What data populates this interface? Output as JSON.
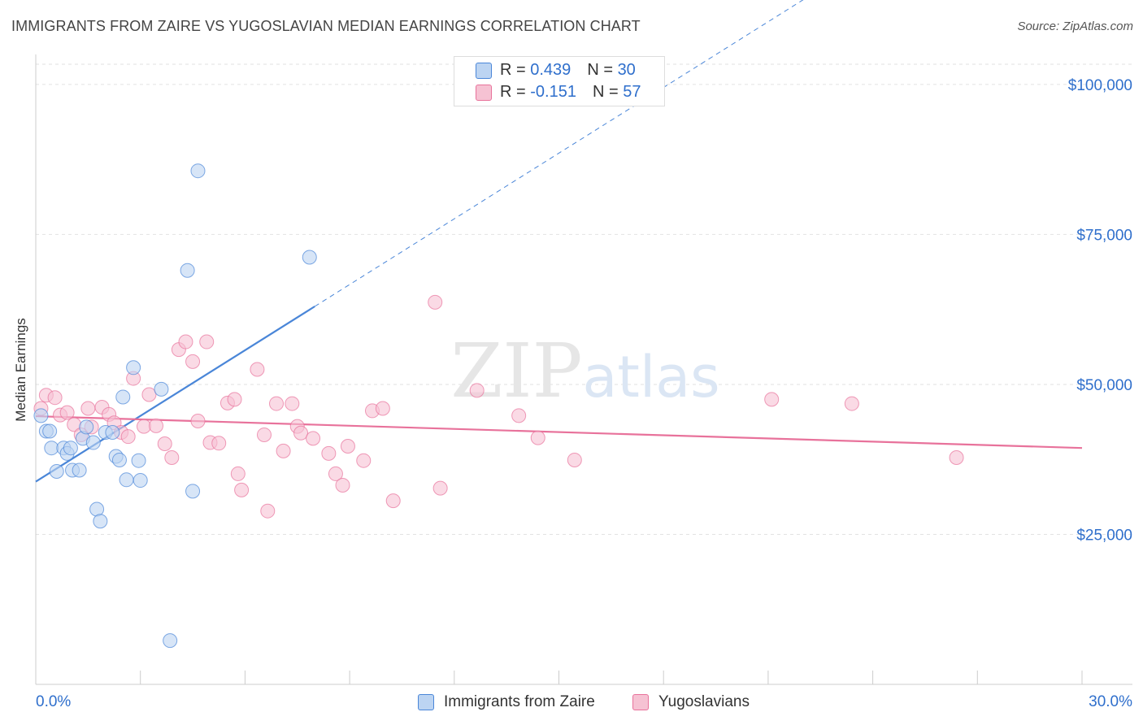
{
  "title": "IMMIGRANTS FROM ZAIRE VS YUGOSLAVIAN MEDIAN EARNINGS CORRELATION CHART",
  "source": "Source: ZipAtlas.com",
  "colors": {
    "blue": "#4a86d8",
    "blue_fill": "#bcd4f2",
    "pink": "#e8729b",
    "pink_fill": "#f6c2d3",
    "axis_label": "#2f6fcc"
  },
  "legend": {
    "r_label": "R = ",
    "n_label": "N = ",
    "rows": [
      {
        "r": "0.439",
        "n": "30"
      },
      {
        "r": "-0.151",
        "n": "57"
      }
    ]
  },
  "chart_data": {
    "type": "scatter",
    "title": "IMMIGRANTS FROM ZAIRE VS YUGOSLAVIAN MEDIAN EARNINGS CORRELATION CHART",
    "xlabel": "",
    "ylabel": "Median Earnings",
    "xlim": [
      0,
      30
    ],
    "ylim": [
      0,
      105000
    ],
    "x_tick_labels": [
      "0.0%",
      "30.0%"
    ],
    "y_ticks": [
      25000,
      50000,
      75000,
      100000
    ],
    "y_tick_labels": [
      "$25,000",
      "$50,000",
      "$75,000",
      "$100,000"
    ],
    "watermark": "ZIPatlas",
    "series": [
      {
        "name": "Immigrants from Zaire",
        "color": "#4a86d8",
        "trend": {
          "x0": 0,
          "y0": 33800,
          "x1": 8.0,
          "y1": 63000,
          "dash_to_x": 23.8
        },
        "points": [
          [
            0.15,
            44800
          ],
          [
            0.3,
            42200
          ],
          [
            0.4,
            42200
          ],
          [
            0.45,
            39400
          ],
          [
            0.6,
            35500
          ],
          [
            0.8,
            39400
          ],
          [
            0.9,
            38500
          ],
          [
            1.0,
            39400
          ],
          [
            1.05,
            35700
          ],
          [
            1.25,
            35700
          ],
          [
            1.35,
            41000
          ],
          [
            1.45,
            42900
          ],
          [
            1.65,
            40300
          ],
          [
            1.75,
            29200
          ],
          [
            1.85,
            27200
          ],
          [
            2.0,
            42000
          ],
          [
            2.2,
            42000
          ],
          [
            2.3,
            38000
          ],
          [
            2.4,
            37400
          ],
          [
            2.5,
            47900
          ],
          [
            2.6,
            34100
          ],
          [
            2.8,
            52800
          ],
          [
            2.95,
            37300
          ],
          [
            3.0,
            34000
          ],
          [
            3.6,
            49200
          ],
          [
            3.85,
            7300
          ],
          [
            4.35,
            69000
          ],
          [
            4.5,
            32200
          ],
          [
            4.65,
            85600
          ],
          [
            7.85,
            71200
          ]
        ]
      },
      {
        "name": "Yugoslavians",
        "color": "#e8729b",
        "trend": {
          "x0": 0,
          "y0": 44700,
          "x1": 30,
          "y1": 39400
        },
        "points": [
          [
            0.15,
            46000
          ],
          [
            0.3,
            48200
          ],
          [
            0.55,
            47800
          ],
          [
            0.7,
            44900
          ],
          [
            0.9,
            45300
          ],
          [
            1.1,
            43300
          ],
          [
            1.3,
            41600
          ],
          [
            1.5,
            46000
          ],
          [
            1.6,
            42900
          ],
          [
            1.9,
            46200
          ],
          [
            2.1,
            45000
          ],
          [
            2.25,
            43600
          ],
          [
            2.45,
            42000
          ],
          [
            2.65,
            41300
          ],
          [
            2.8,
            51000
          ],
          [
            3.1,
            43000
          ],
          [
            3.25,
            48300
          ],
          [
            3.45,
            43100
          ],
          [
            3.7,
            40100
          ],
          [
            3.9,
            37800
          ],
          [
            4.1,
            55800
          ],
          [
            4.3,
            57100
          ],
          [
            4.5,
            53800
          ],
          [
            4.65,
            43900
          ],
          [
            4.9,
            57100
          ],
          [
            5.0,
            40300
          ],
          [
            5.25,
            40200
          ],
          [
            5.5,
            46900
          ],
          [
            5.7,
            47500
          ],
          [
            5.8,
            35100
          ],
          [
            5.9,
            32400
          ],
          [
            6.35,
            52500
          ],
          [
            6.55,
            41600
          ],
          [
            6.65,
            28900
          ],
          [
            6.9,
            46800
          ],
          [
            7.1,
            38900
          ],
          [
            7.35,
            46800
          ],
          [
            7.5,
            43000
          ],
          [
            7.6,
            41900
          ],
          [
            7.95,
            41000
          ],
          [
            8.4,
            38500
          ],
          [
            8.6,
            35100
          ],
          [
            8.8,
            33200
          ],
          [
            8.95,
            39700
          ],
          [
            9.4,
            37300
          ],
          [
            9.65,
            45600
          ],
          [
            9.95,
            46000
          ],
          [
            10.25,
            30600
          ],
          [
            11.45,
            63700
          ],
          [
            11.6,
            32700
          ],
          [
            12.65,
            49000
          ],
          [
            13.85,
            44800
          ],
          [
            14.4,
            41100
          ],
          [
            15.45,
            37400
          ],
          [
            21.1,
            47500
          ],
          [
            23.4,
            46800
          ],
          [
            26.4,
            37800
          ]
        ]
      }
    ]
  }
}
